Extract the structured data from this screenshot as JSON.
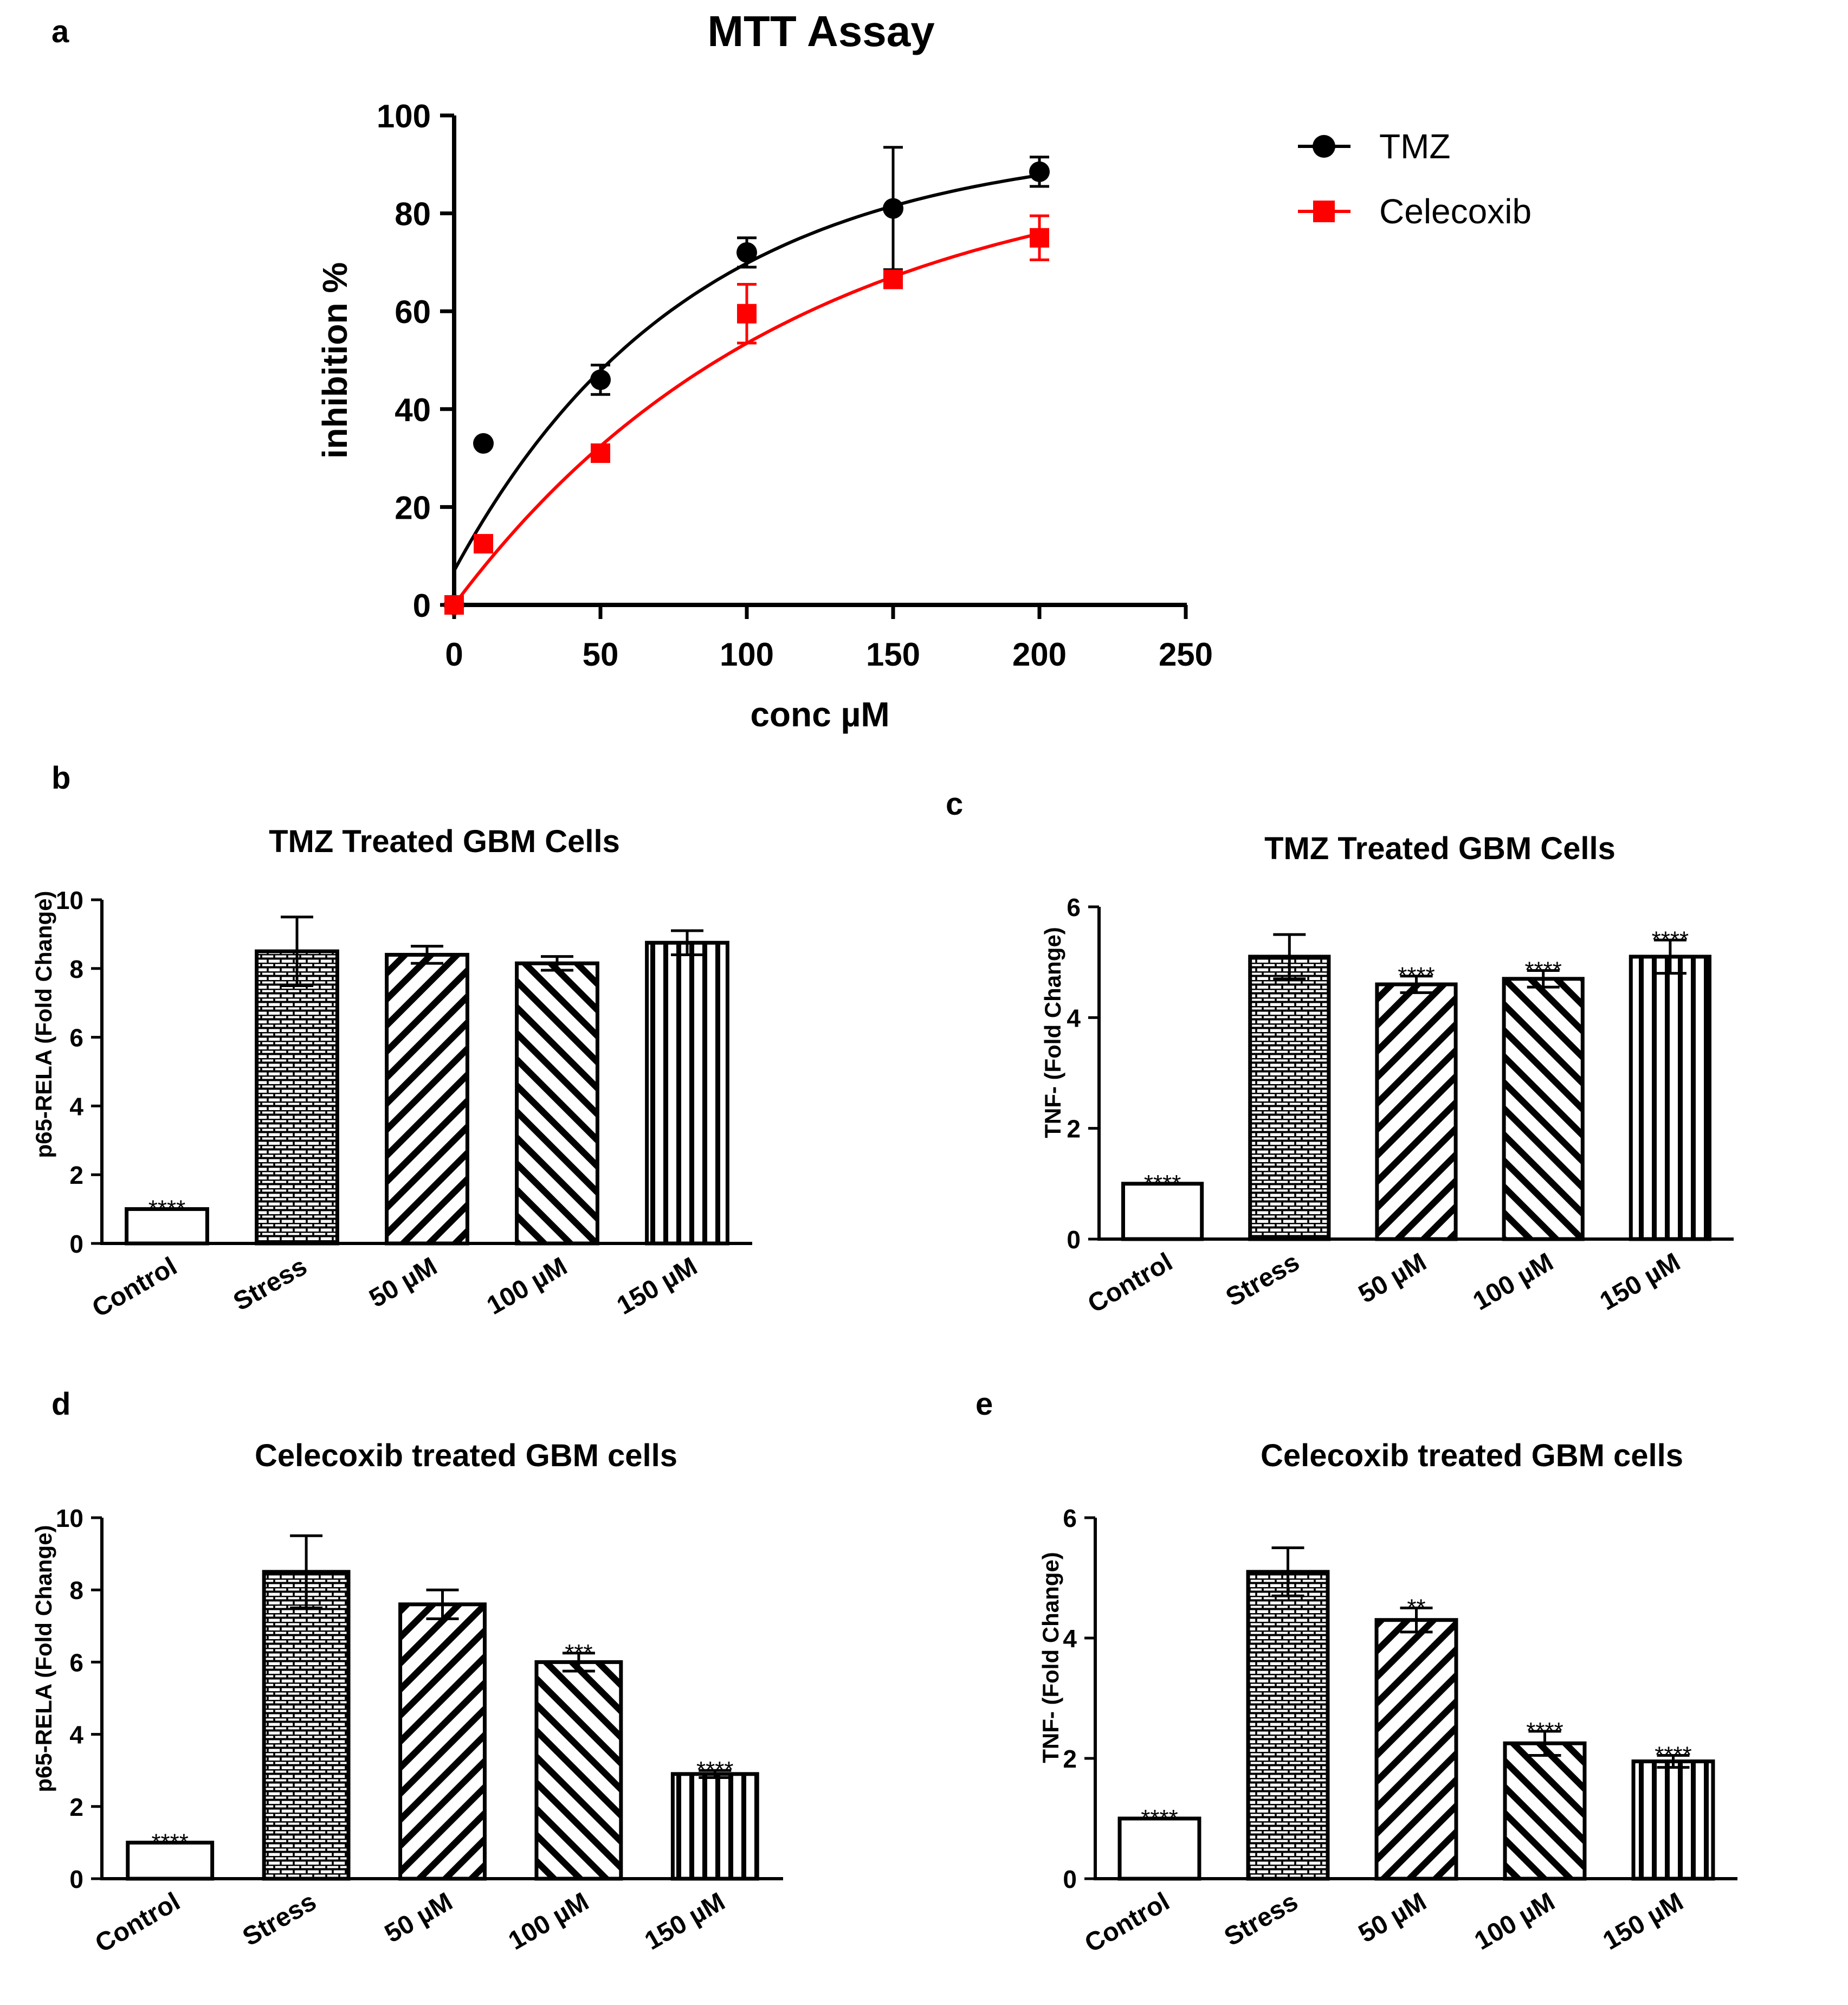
{
  "panels": {
    "a": {
      "letter": "a"
    },
    "b": {
      "letter": "b"
    },
    "c": {
      "letter": "c"
    },
    "d": {
      "letter": "d"
    },
    "e": {
      "letter": "e"
    }
  },
  "colors": {
    "tmz": "#000000",
    "celecoxib": "#ff0000",
    "axis": "#000000"
  },
  "chart_data": [
    {
      "id": "a",
      "type": "scatter",
      "title": "MTT Assay",
      "xlabel": "conc µM",
      "ylabel": "inhibition %",
      "xlim": [
        0,
        250
      ],
      "ylim": [
        0,
        100
      ],
      "xticks": [
        0,
        50,
        100,
        150,
        200,
        250
      ],
      "yticks": [
        0,
        20,
        40,
        60,
        80,
        100
      ],
      "legend_position": "top-right",
      "fit_curves": true,
      "series": [
        {
          "name": "TMZ",
          "marker": "circle",
          "color": "#000000",
          "x": [
            0,
            10,
            50,
            100,
            150,
            200
          ],
          "y": [
            0,
            33,
            46,
            72,
            81,
            88.5
          ],
          "err": [
            0,
            0,
            3,
            3,
            12.5,
            3
          ],
          "fit": {
            "y0": 7,
            "ymax": 95,
            "k": 0.0125
          }
        },
        {
          "name": "Celecoxib",
          "marker": "square",
          "color": "#ff0000",
          "x": [
            0,
            10,
            50,
            100,
            150,
            200
          ],
          "y": [
            0,
            12.5,
            31,
            59.5,
            66.5,
            75
          ],
          "err": [
            0,
            0,
            0,
            6,
            0,
            4.5
          ],
          "fit": {
            "y0": 0,
            "ymax": 92,
            "k": 0.0087
          }
        }
      ]
    },
    {
      "id": "b",
      "type": "bar",
      "title": "TMZ Treated GBM Cells",
      "ylabel": "p65-RELA (Fold Change)",
      "ylim": [
        0,
        10
      ],
      "yticks": [
        0,
        2,
        4,
        6,
        8,
        10
      ],
      "categories": [
        "Control",
        "Stress",
        "50 µM",
        "100 µM",
        "150 µM"
      ],
      "values": [
        1.0,
        8.5,
        8.4,
        8.15,
        8.75
      ],
      "errors": [
        0,
        1.0,
        0.25,
        0.2,
        0.35
      ],
      "significance": [
        "****",
        "",
        "",
        "",
        ""
      ],
      "patterns": [
        "none",
        "brick",
        "diag",
        "diag2",
        "vert"
      ]
    },
    {
      "id": "c",
      "type": "bar",
      "title": "TMZ Treated GBM Cells",
      "ylabel": "TNF- (Fold Change)",
      "ylim": [
        0,
        6
      ],
      "yticks": [
        0,
        2,
        4,
        6
      ],
      "categories": [
        "Control",
        "Stress",
        "50 µM",
        "100 µM",
        "150 µM"
      ],
      "values": [
        1.0,
        5.1,
        4.6,
        4.7,
        5.1
      ],
      "errors": [
        0,
        0.4,
        0.15,
        0.15,
        0.3
      ],
      "significance": [
        "****",
        "",
        "****",
        "****",
        "****"
      ],
      "patterns": [
        "none",
        "brick",
        "diag",
        "diag2",
        "vert"
      ]
    },
    {
      "id": "d",
      "type": "bar",
      "title": "Celecoxib treated GBM cells",
      "ylabel": "p65-RELA (Fold Change)",
      "ylim": [
        0,
        10
      ],
      "yticks": [
        0,
        2,
        4,
        6,
        8,
        10
      ],
      "categories": [
        "Control",
        "Stress",
        "50 µM",
        "100 µM",
        "150 µM"
      ],
      "values": [
        1.0,
        8.5,
        7.6,
        6.0,
        2.9
      ],
      "errors": [
        0,
        1.0,
        0.4,
        0.25,
        0.1
      ],
      "significance": [
        "****",
        "",
        "",
        "***",
        "****"
      ],
      "patterns": [
        "none",
        "brick",
        "diag",
        "diag2",
        "vert"
      ]
    },
    {
      "id": "e",
      "type": "bar",
      "title": "Celecoxib treated GBM cells",
      "ylabel": "TNF- (Fold Change)",
      "ylim": [
        0,
        6
      ],
      "yticks": [
        0,
        2,
        4,
        6
      ],
      "categories": [
        "Control",
        "Stress",
        "50 µM",
        "100 µM",
        "150 µM"
      ],
      "values": [
        1.0,
        5.1,
        4.3,
        2.25,
        1.95
      ],
      "errors": [
        0,
        0.4,
        0.2,
        0.2,
        0.1
      ],
      "significance": [
        "****",
        "",
        "**",
        "****",
        "****"
      ],
      "patterns": [
        "none",
        "brick",
        "diag",
        "diag2",
        "vert"
      ]
    }
  ]
}
